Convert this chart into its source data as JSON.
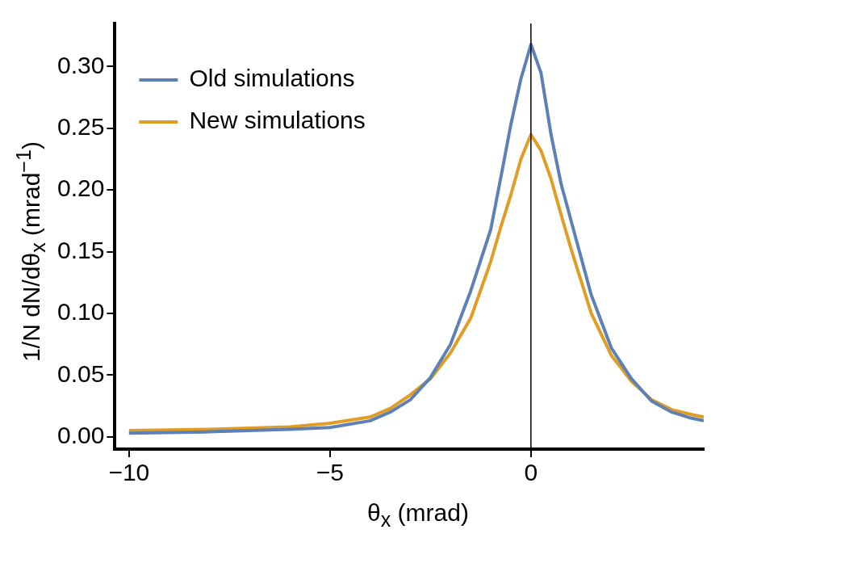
{
  "chart_data": {
    "type": "line",
    "xlabel": "θ$_{x}$ (mrad)",
    "ylabel": "1/N dN/dθ$_{x}$ (mrad$^{−1}$)",
    "x": [
      -10,
      -9,
      -8,
      -7,
      -6,
      -5,
      -4,
      -3.5,
      -3,
      -2.5,
      -2,
      -1.5,
      -1,
      -0.75,
      -0.5,
      -0.25,
      0,
      0.25,
      0.5,
      0.75,
      1,
      1.5,
      2,
      2.5,
      3,
      3.5,
      4,
      4.3
    ],
    "series": [
      {
        "name": "Old simulations",
        "color": "#5e81b5",
        "values": [
          0.003,
          0.0035,
          0.004,
          0.005,
          0.006,
          0.0075,
          0.013,
          0.02,
          0.03,
          0.048,
          0.075,
          0.118,
          0.168,
          0.21,
          0.253,
          0.29,
          0.318,
          0.295,
          0.245,
          0.205,
          0.175,
          0.115,
          0.072,
          0.047,
          0.029,
          0.02,
          0.015,
          0.013
        ]
      },
      {
        "name": "New simulations",
        "color": "#e19c24",
        "values": [
          0.005,
          0.0055,
          0.006,
          0.007,
          0.008,
          0.011,
          0.016,
          0.023,
          0.034,
          0.047,
          0.068,
          0.096,
          0.142,
          0.17,
          0.196,
          0.225,
          0.245,
          0.232,
          0.209,
          0.18,
          0.152,
          0.1,
          0.066,
          0.045,
          0.03,
          0.022,
          0.018,
          0.016
        ]
      }
    ],
    "xlim": [
      -10.35,
      4.3
    ],
    "ylim": [
      -0.01,
      0.335
    ],
    "xticks": [
      {
        "value": -10,
        "label": "−10"
      },
      {
        "value": -5,
        "label": "−5"
      },
      0
    ],
    "yticks": [
      {
        "value": 0,
        "label": "0.00"
      },
      {
        "value": 0.05,
        "label": "0.05"
      },
      {
        "value": 0.1,
        "label": "0.10"
      },
      {
        "value": 0.15,
        "label": "0.15"
      },
      {
        "value": 0.2,
        "label": "0.20"
      },
      {
        "value": 0.25,
        "label": "0.25"
      },
      {
        "value": 0.3,
        "label": "0.30"
      }
    ],
    "ref_lines": [
      {
        "axis": "x",
        "value": 0,
        "color": "#000000"
      }
    ],
    "legend": "top left",
    "grid": false,
    "marker": "none",
    "line_style": "solid"
  }
}
